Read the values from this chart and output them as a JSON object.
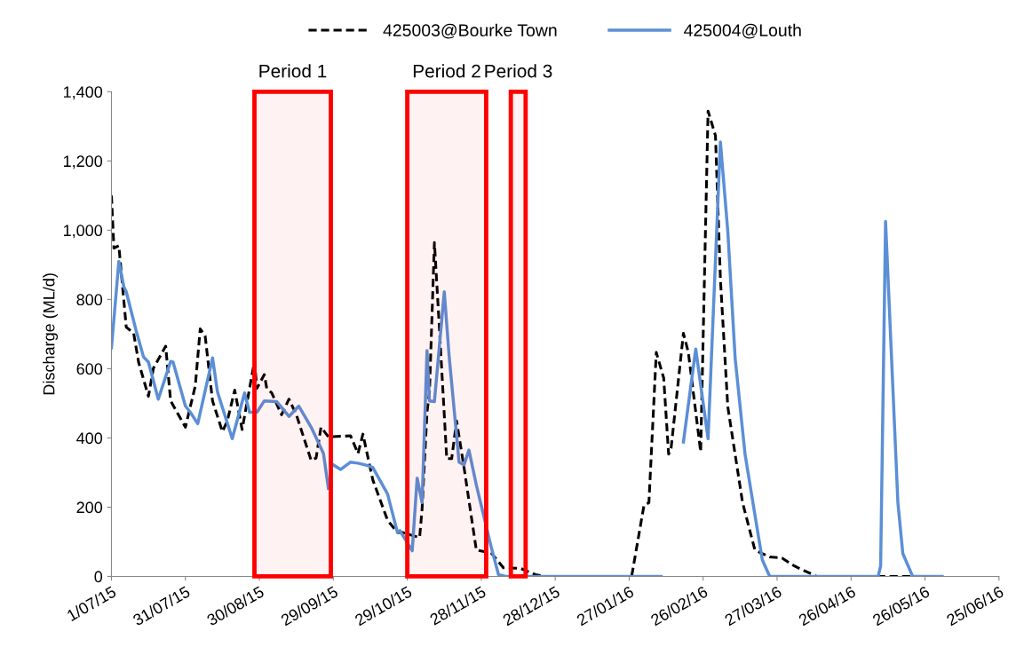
{
  "chart_data": {
    "type": "line",
    "ylabel": "Discharge (ML/d)",
    "legend": "top",
    "grid": false,
    "xlim": [
      "2015-07-01",
      "2016-06-25"
    ],
    "xticks": [
      {
        "value": "2015-07-01",
        "label": "1/07/15"
      },
      {
        "value": "2015-07-31",
        "label": "31/07/15"
      },
      {
        "value": "2015-08-30",
        "label": "30/08/15"
      },
      {
        "value": "2015-09-29",
        "label": "29/09/15"
      },
      {
        "value": "2015-10-29",
        "label": "29/10/15"
      },
      {
        "value": "2015-11-28",
        "label": "28/11/15"
      },
      {
        "value": "2015-12-28",
        "label": "28/12/15"
      },
      {
        "value": "2016-01-27",
        "label": "27/01/16"
      },
      {
        "value": "2016-02-26",
        "label": "26/02/16"
      },
      {
        "value": "2016-03-27",
        "label": "27/03/16"
      },
      {
        "value": "2016-04-26",
        "label": "26/04/16"
      },
      {
        "value": "2016-05-26",
        "label": "26/05/16"
      },
      {
        "value": "2016-06-25",
        "label": "25/06/16"
      }
    ],
    "ylim": [
      0,
      1400
    ],
    "yticks": [
      0,
      200,
      400,
      600,
      800,
      {
        "value": 1000,
        "label": "1,000"
      },
      {
        "value": 1200,
        "label": "1,200"
      },
      {
        "value": 1400,
        "label": "1,400"
      }
    ],
    "bands": [
      {
        "axis": "x",
        "from": "2015-08-28",
        "to": "2015-09-28",
        "label": "Period 1",
        "color": "#ff0000"
      },
      {
        "axis": "x",
        "from": "2015-10-29",
        "to": "2015-11-30",
        "label": "Period 2",
        "color": "#ff0000"
      },
      {
        "axis": "x",
        "from": "2015-12-10",
        "to": "2015-12-16",
        "label": "Period 3",
        "color": "#ff0000"
      }
    ],
    "series": [
      {
        "name": "425003@Bourke Town",
        "color": "#000000",
        "line_style": "dashed",
        "x": [
          "2015-07-01",
          "2015-07-02",
          "2015-07-04",
          "2015-07-07",
          "2015-07-10",
          "2015-07-12",
          "2015-07-16",
          "2015-07-18",
          "2015-07-23",
          "2015-07-25",
          "2015-07-31",
          "2015-08-04",
          "2015-08-06",
          "2015-08-08",
          "2015-08-11",
          "2015-08-15",
          "2015-08-17",
          "2015-08-20",
          "2015-08-23",
          "2015-08-28",
          "2015-08-29",
          "2015-09-01",
          "2015-09-02",
          "2015-09-04",
          "2015-09-08",
          "2015-09-11",
          "2015-09-14",
          "2015-09-20",
          "2015-09-22",
          "2015-09-24",
          "2015-09-27",
          "2015-10-06",
          "2015-10-09",
          "2015-10-11",
          "2015-10-15",
          "2015-10-21",
          "2015-10-25",
          "2015-10-27",
          "2015-11-03",
          "2015-11-04",
          "2015-11-06",
          "2015-11-07",
          "2015-11-09",
          "2015-11-11",
          "2015-11-14",
          "2015-11-16",
          "2015-11-18",
          "2015-11-21",
          "2015-11-26",
          "2015-12-02",
          "2015-12-07",
          "2015-12-14",
          "2015-12-20",
          "2015-12-24",
          "2016-01-28",
          "2016-02-02",
          "2016-02-04",
          "2016-02-07",
          "2016-02-10",
          "2016-02-12",
          "2016-02-13",
          "2016-02-18",
          "2016-02-20",
          "2016-02-25",
          "2016-02-28",
          "2016-03-02",
          "2016-03-04",
          "2016-03-07",
          "2016-03-13",
          "2016-03-18",
          "2016-03-24",
          "2016-03-29",
          "2016-04-03",
          "2016-04-12",
          "2016-05-22"
        ],
        "values": [
          1100,
          948,
          955,
          720,
          703,
          619,
          520,
          601,
          665,
          507,
          431,
          550,
          715,
          695,
          507,
          418,
          449,
          538,
          424,
          621,
          543,
          583,
          543,
          530,
          467,
          512,
          467,
          335,
          342,
          431,
          403,
          406,
          355,
          411,
          279,
          162,
          127,
          127,
          112,
          195,
          474,
          533,
          964,
          720,
          340,
          340,
          449,
          315,
          76,
          68,
          25,
          23,
          5,
          0,
          0,
          205,
          213,
          647,
          573,
          353,
          370,
          702,
          647,
          360,
          1344,
          1273,
          860,
          490,
          213,
          76,
          56,
          53,
          30,
          0,
          0
        ]
      },
      {
        "name": "425004@Louth",
        "color": "#5b8fd6",
        "line_style": "solid",
        "x": [
          "2015-07-01",
          "2015-07-04",
          "2015-07-06",
          "2015-07-07",
          "2015-07-11",
          "2015-07-14",
          "2015-07-16",
          "2015-07-20",
          "2015-07-25",
          "2015-07-26",
          "2015-07-31",
          "2015-08-02",
          "2015-08-05",
          "2015-08-11",
          "2015-08-13",
          "2015-08-19",
          "2015-08-24",
          "2015-08-26",
          "2015-08-29",
          "2015-09-01",
          "2015-09-06",
          "2015-09-11",
          "2015-09-15",
          "2015-09-20",
          "2015-09-25",
          "2015-09-27",
          "2015-09-28",
          "2015-09-29",
          "2015-10-02",
          "2015-10-06",
          "2015-10-09",
          "2015-10-12",
          "2015-10-15",
          "2015-10-21",
          "2015-10-25",
          "2015-10-26",
          "2015-10-31",
          "2015-11-02",
          "2015-11-04",
          "2015-11-06",
          "2015-11-07",
          "2015-11-09",
          "2015-11-13",
          "2015-11-15",
          "2015-11-19",
          "2015-11-21",
          "2015-11-23",
          "2015-11-26",
          "2015-12-02",
          "2015-12-05",
          "2015-12-08",
          "2016-02-09",
          "2016-02-14",
          "2016-02-18",
          "2016-02-23",
          "2016-02-28",
          "2016-03-04",
          "2016-03-07",
          "2016-03-10",
          "2016-03-14",
          "2016-03-18",
          "2016-03-21",
          "2016-03-24",
          "2016-05-07",
          "2016-05-08",
          "2016-05-10",
          "2016-05-13",
          "2016-05-15",
          "2016-05-17",
          "2016-05-21",
          "2016-06-02"
        ],
        "values": [
          660,
          910,
          837,
          822,
          710,
          634,
          619,
          512,
          621,
          619,
          492,
          474,
          441,
          631,
          533,
          398,
          530,
          474,
          474,
          507,
          505,
          462,
          492,
          431,
          355,
          254,
          null,
          322,
          309,
          330,
          327,
          322,
          315,
          238,
          127,
          132,
          74,
          284,
          213,
          652,
          507,
          505,
          822,
          634,
          330,
          322,
          365,
          264,
          86,
          5,
          0,
          0,
          null,
          388,
          657,
          398,
          1255,
          997,
          629,
          353,
          178,
          48,
          0,
          0,
          30,
          1025,
          538,
          213,
          66,
          0,
          0
        ]
      }
    ]
  }
}
